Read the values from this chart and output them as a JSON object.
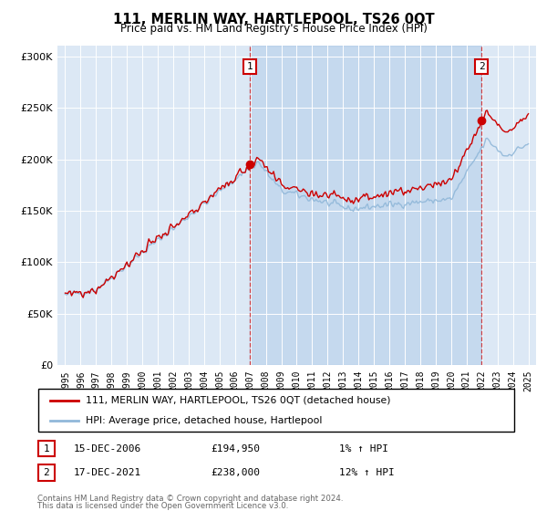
{
  "title": "111, MERLIN WAY, HARTLEPOOL, TS26 0QT",
  "subtitle": "Price paid vs. HM Land Registry's House Price Index (HPI)",
  "bg_color": "#dce8f5",
  "fig_bg_color": "#ffffff",
  "hpi_color": "#91b8d9",
  "price_color": "#cc0000",
  "ylim": [
    0,
    310000
  ],
  "yticks": [
    0,
    50000,
    100000,
    150000,
    200000,
    250000,
    300000
  ],
  "ytick_labels": [
    "£0",
    "£50K",
    "£100K",
    "£150K",
    "£200K",
    "£250K",
    "£300K"
  ],
  "xmin": 1994.5,
  "xmax": 2025.5,
  "sale1_year": 2006.96,
  "sale1_price": 194950,
  "sale1_label": "1",
  "sale1_date": "15-DEC-2006",
  "sale1_pct": "1%",
  "sale2_year": 2021.96,
  "sale2_price": 238000,
  "sale2_label": "2",
  "sale2_date": "17-DEC-2021",
  "sale2_pct": "12%",
  "legend_line1": "111, MERLIN WAY, HARTLEPOOL, TS26 0QT (detached house)",
  "legend_line2": "HPI: Average price, detached house, Hartlepool",
  "footer1": "Contains HM Land Registry data © Crown copyright and database right 2024.",
  "footer2": "This data is licensed under the Open Government Licence v3.0."
}
